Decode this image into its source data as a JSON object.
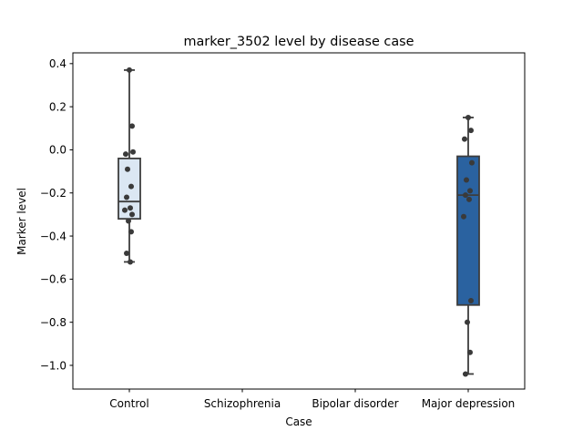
{
  "chart_data": {
    "type": "box",
    "title": "marker_3502 level by disease case",
    "xlabel": "Case",
    "ylabel": "Marker level",
    "categories": [
      "Control",
      "Schizophrenia",
      "Bipolar disorder",
      "Major depression"
    ],
    "ylim": [
      -1.11,
      0.45
    ],
    "yticks": [
      0.4,
      0.2,
      0.0,
      -0.2,
      -0.4,
      -0.6,
      -0.8,
      -1.0
    ],
    "ytick_labels": [
      "0.4",
      "0.2",
      "0.0",
      "−0.2",
      "−0.4",
      "−0.6",
      "−0.8",
      "−1.0"
    ],
    "grid": false,
    "boxes": [
      {
        "category": "Control",
        "color": "#dbe7f3",
        "whisker_low": -0.52,
        "q1": -0.32,
        "median": -0.24,
        "q3": -0.04,
        "whisker_high": 0.37,
        "points": [
          0.37,
          0.11,
          -0.02,
          -0.01,
          -0.09,
          -0.17,
          -0.22,
          -0.27,
          -0.28,
          -0.3,
          -0.33,
          -0.38,
          -0.48,
          -0.52
        ]
      },
      {
        "category": "Major depression",
        "color": "#2a62a0",
        "whisker_low": -1.04,
        "q1": -0.72,
        "median": -0.21,
        "q3": -0.03,
        "whisker_high": 0.15,
        "points": [
          0.15,
          0.09,
          0.05,
          -0.06,
          -0.14,
          -0.19,
          -0.21,
          -0.23,
          -0.31,
          -0.7,
          -0.8,
          -0.94,
          -1.04
        ]
      }
    ]
  }
}
